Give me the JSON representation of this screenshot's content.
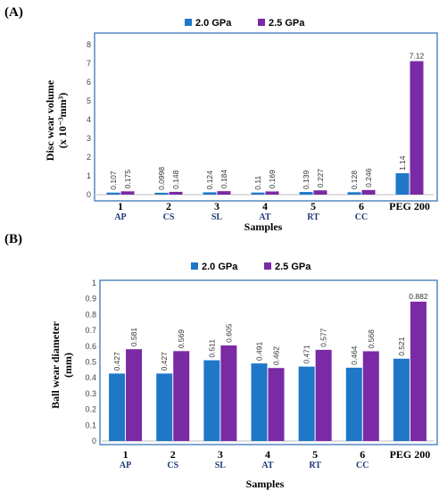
{
  "colors": {
    "s20": "#1f77c8",
    "s25": "#7a2aa5",
    "frame": "#4a7fbf"
  },
  "chart_data": [
    {
      "panel": "(A)",
      "type": "bar",
      "categories": [
        {
          "num": "1",
          "code": "AP"
        },
        {
          "num": "2",
          "code": "CS"
        },
        {
          "num": "3",
          "code": "SL"
        },
        {
          "num": "4",
          "code": "AT"
        },
        {
          "num": "5",
          "code": "RT"
        },
        {
          "num": "6",
          "code": "CC"
        },
        {
          "num": "PEG 200",
          "code": ""
        }
      ],
      "series": [
        {
          "name": "2.0 GPa",
          "values": [
            0.107,
            0.0998,
            0.124,
            0.11,
            0.139,
            0.128,
            1.14
          ],
          "labels": [
            "0.107",
            "0.0998",
            "0.124",
            "0.11",
            "0.139",
            "0.128",
            "1.14"
          ]
        },
        {
          "name": "2.5 GPa",
          "values": [
            0.175,
            0.148,
            0.184,
            0.169,
            0.227,
            0.246,
            7.12
          ],
          "labels": [
            "0.175",
            "0.148",
            "0.184",
            "0.169",
            "0.227",
            "0.246",
            "7.12"
          ]
        }
      ],
      "ylim": [
        0,
        8
      ],
      "yticks": [
        "0",
        "1",
        "2",
        "3",
        "4",
        "5",
        "6",
        "7",
        "8"
      ],
      "ylabel_line1": "Disc wear volume",
      "ylabel_line2": "(x 10⁻³mm³)",
      "xlabel": "Samples",
      "legend_position": "top-center",
      "grid": false
    },
    {
      "panel": "(B)",
      "type": "bar",
      "categories": [
        {
          "num": "1",
          "code": "AP"
        },
        {
          "num": "2",
          "code": "CS"
        },
        {
          "num": "3",
          "code": "SL"
        },
        {
          "num": "4",
          "code": "AT"
        },
        {
          "num": "5",
          "code": "RT"
        },
        {
          "num": "6",
          "code": "CC"
        },
        {
          "num": "PEG 200",
          "code": ""
        }
      ],
      "series": [
        {
          "name": "2.0 GPa",
          "values": [
            0.427,
            0.427,
            0.511,
            0.491,
            0.471,
            0.464,
            0.521
          ],
          "labels": [
            "0.427",
            "0.427",
            "0.511",
            "0.491",
            "0.471",
            "0.464",
            "0.521"
          ]
        },
        {
          "name": "2.5 GPa",
          "values": [
            0.581,
            0.569,
            0.605,
            0.462,
            0.577,
            0.568,
            0.882
          ],
          "labels": [
            "0.581",
            "0.569",
            "0.605",
            "0.462",
            "0.577",
            "0.568",
            "0.882"
          ]
        }
      ],
      "ylim": [
        0,
        1
      ],
      "yticks": [
        "0",
        "0.1",
        "0.2",
        "0.3",
        "0.4",
        "0.5",
        "0.6",
        "0.7",
        "0.8",
        "0.9",
        "1"
      ],
      "ylabel_line1": "Ball wear diameter",
      "ylabel_line2": "(mm)",
      "xlabel": "Samples",
      "legend_position": "top-center",
      "grid": false
    }
  ]
}
